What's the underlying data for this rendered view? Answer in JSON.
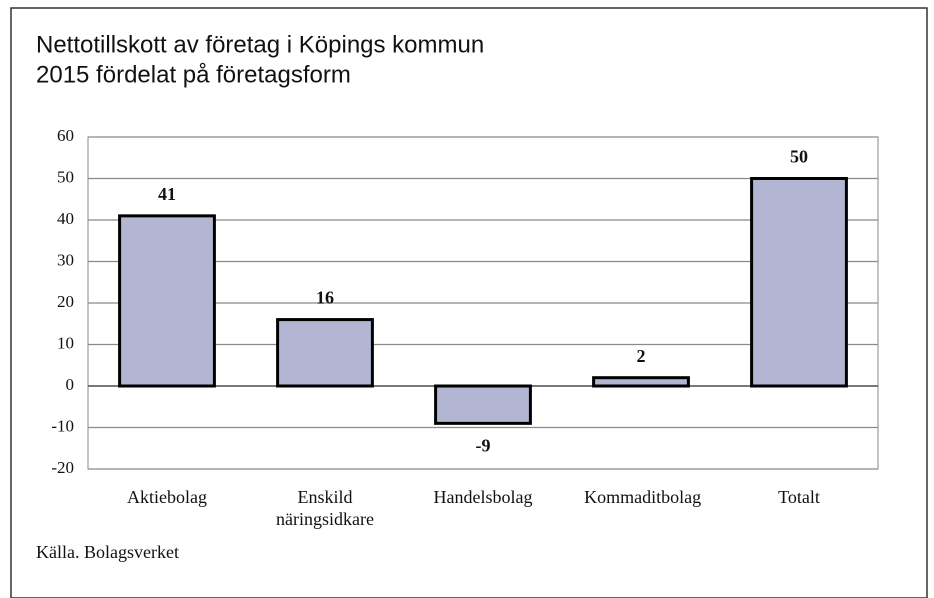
{
  "chart_data": {
    "type": "bar",
    "title": [
      "Nettotillskott av företag i Köpings kommun",
      "2015 fördelat på företagsform"
    ],
    "categories": [
      "Aktiebolag",
      "Enskild näringsidkare",
      "Handelsbolag",
      "Kommaditbolag",
      "Totalt"
    ],
    "values": [
      41,
      16,
      -9,
      2,
      50
    ],
    "color": "#b3b6d3",
    "ylim": [
      -20,
      60
    ],
    "yticks": [
      -20,
      -10,
      0,
      10,
      20,
      30,
      40,
      50,
      60
    ],
    "grid": true,
    "source": "Källa. Bolagsverket"
  }
}
